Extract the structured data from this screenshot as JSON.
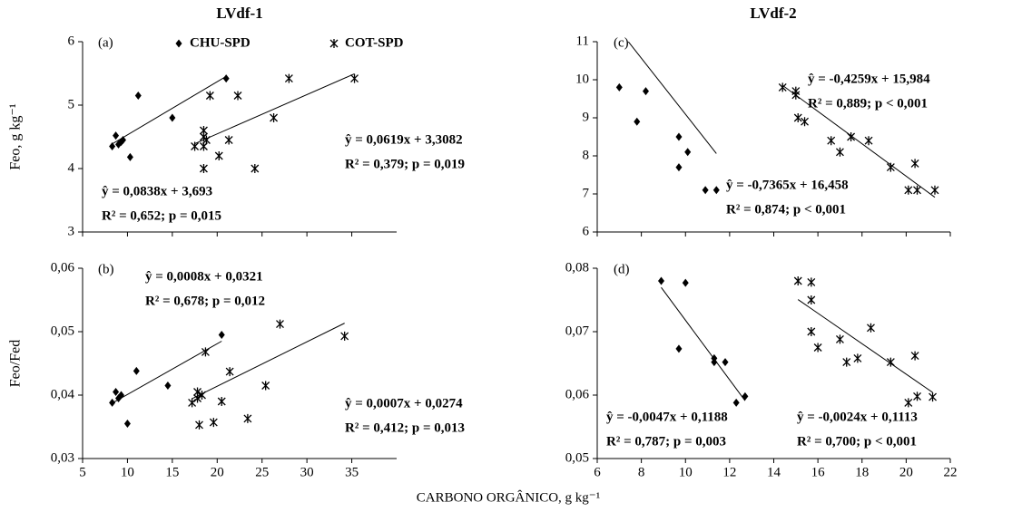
{
  "chart_data": [
    {
      "type": "scatter",
      "label": "(a)",
      "title": "LVdf-1",
      "ylabel": "Feo, g kg⁻¹",
      "xlim": [
        5,
        40
      ],
      "xticks": [
        5,
        10,
        15,
        20,
        25,
        30,
        35
      ],
      "xtick_labels": false,
      "ylim": [
        3,
        6
      ],
      "yticks": [
        3,
        4,
        5,
        6
      ],
      "legend": true,
      "series": [
        {
          "name": "CHU-SPD",
          "marker": "diamond",
          "color": "#000000",
          "x": [
            8.3,
            8.7,
            9.0,
            9.3,
            9.5,
            10.3,
            11.2,
            15.0,
            21.0
          ],
          "values": [
            4.35,
            4.52,
            4.38,
            4.42,
            4.45,
            4.18,
            5.15,
            4.8,
            5.42
          ],
          "fit": {
            "slope": 0.0838,
            "intercept": 3.693,
            "equation": "ŷ  = 0,0838x + 3,693",
            "stats": "R² = 0,652;   p = 0,015"
          }
        },
        {
          "name": "COT-SPD",
          "marker": "star",
          "color": "#000000",
          "x": [
            18.5,
            18.5,
            18.8,
            17.5,
            18.5,
            18.5,
            19.2,
            20.2,
            21.3,
            22.3,
            24.2,
            26.3,
            28.0,
            35.3
          ],
          "values": [
            4.6,
            4.5,
            4.45,
            4.35,
            4.35,
            4.0,
            5.15,
            4.2,
            4.45,
            5.15,
            4.0,
            4.8,
            5.42,
            5.42
          ],
          "fit": {
            "slope": 0.0619,
            "intercept": 3.3082,
            "equation": "ŷ  = 0,0619x + 3,3082",
            "stats": "R² = 0,379;   p = 0,019"
          }
        }
      ]
    },
    {
      "type": "scatter",
      "label": "(b)",
      "ylabel": "Feo/Fed",
      "xlim": [
        5,
        40
      ],
      "xticks": [
        5,
        10,
        15,
        20,
        25,
        30,
        35
      ],
      "xtick_labels": true,
      "ylim": [
        0.03,
        0.06
      ],
      "yticks": [
        {
          "value": 0.03,
          "label": "0,03"
        },
        {
          "value": 0.04,
          "label": "0,04"
        },
        {
          "value": 0.05,
          "label": "0,05"
        },
        {
          "value": 0.06,
          "label": "0,06"
        }
      ],
      "legend": false,
      "series": [
        {
          "marker": "diamond",
          "color": "#000000",
          "x": [
            8.3,
            8.7,
            9.0,
            9.3,
            10.0,
            11.0,
            14.5,
            20.5
          ],
          "values": [
            0.0388,
            0.0405,
            0.0395,
            0.04,
            0.0355,
            0.0438,
            0.0415,
            0.0495
          ],
          "fit": {
            "slope": 0.0008,
            "intercept": 0.0321,
            "equation": "ŷ  = 0,0008x + 0,0321",
            "stats": "R² = 0,678;   p = 0,012"
          }
        },
        {
          "marker": "star",
          "color": "#000000",
          "x": [
            17.2,
            17.8,
            17.8,
            18.0,
            18.3,
            18.7,
            19.6,
            20.5,
            21.4,
            23.4,
            25.4,
            27.0,
            34.2
          ],
          "values": [
            0.0388,
            0.0405,
            0.0395,
            0.0353,
            0.04,
            0.0468,
            0.0357,
            0.039,
            0.0437,
            0.0363,
            0.0415,
            0.0512,
            0.0493
          ],
          "fit": {
            "slope": 0.0007,
            "intercept": 0.0274,
            "equation": "ŷ  = 0,0007x + 0,0274",
            "stats": "R² = 0,412;   p = 0,013"
          }
        }
      ]
    },
    {
      "type": "scatter",
      "label": "(c)",
      "title": "LVdf-2",
      "xlim": [
        6,
        22
      ],
      "xticks": [
        6,
        8,
        10,
        12,
        14,
        16,
        18,
        20,
        22
      ],
      "xtick_labels": false,
      "ylim": [
        6,
        11
      ],
      "yticks": [
        6,
        7,
        8,
        9,
        10,
        11
      ],
      "legend": false,
      "series": [
        {
          "marker": "diamond",
          "color": "#000000",
          "x": [
            7.0,
            7.8,
            8.2,
            9.7,
            9.7,
            10.1,
            10.9,
            11.4
          ],
          "values": [
            9.8,
            8.9,
            9.7,
            8.5,
            7.7,
            8.1,
            7.1,
            7.1
          ],
          "fit": {
            "slope": -0.7365,
            "intercept": 16.458,
            "equation": "ŷ  = -0,7365x + 16,458",
            "stats": "R² = 0,874;   p < 0,001"
          }
        },
        {
          "marker": "star",
          "color": "#000000",
          "x": [
            14.4,
            15.0,
            15.0,
            15.1,
            15.4,
            16.6,
            17.0,
            17.5,
            18.3,
            19.3,
            20.1,
            20.4,
            20.5,
            21.3
          ],
          "values": [
            9.8,
            9.7,
            9.6,
            9.0,
            8.9,
            8.4,
            8.1,
            8.5,
            8.4,
            7.7,
            7.1,
            7.8,
            7.1,
            7.1
          ],
          "fit": {
            "slope": -0.4259,
            "intercept": 15.984,
            "equation": "ŷ  = -0,4259x + 15,984",
            "stats": "R² = 0,889;   p < 0,001"
          }
        }
      ]
    },
    {
      "type": "scatter",
      "label": "(d)",
      "xlim": [
        6,
        22
      ],
      "xticks": [
        6,
        8,
        10,
        12,
        14,
        16,
        18,
        20,
        22
      ],
      "xtick_labels": true,
      "ylim": [
        0.05,
        0.08
      ],
      "yticks": [
        {
          "value": 0.05,
          "label": "0,05"
        },
        {
          "value": 0.06,
          "label": "0,06"
        },
        {
          "value": 0.07,
          "label": "0,07"
        },
        {
          "value": 0.08,
          "label": "0,08"
        }
      ],
      "legend": false,
      "series": [
        {
          "marker": "diamond",
          "color": "#000000",
          "x": [
            8.9,
            9.7,
            10.0,
            11.3,
            11.3,
            11.8,
            12.3,
            12.7
          ],
          "values": [
            0.078,
            0.0673,
            0.0777,
            0.0658,
            0.0652,
            0.0652,
            0.0588,
            0.0598
          ],
          "fit": {
            "slope": -0.0047,
            "intercept": 0.1188,
            "equation": "ŷ  = -0,0047x + 0,1188",
            "stats": "R² = 0,787;   p = 0,003"
          }
        },
        {
          "marker": "star",
          "color": "#000000",
          "x": [
            15.1,
            15.7,
            15.7,
            15.7,
            16.0,
            17.0,
            17.3,
            17.8,
            18.4,
            19.3,
            20.1,
            20.4,
            20.5,
            21.2
          ],
          "values": [
            0.078,
            0.0778,
            0.075,
            0.07,
            0.0675,
            0.0688,
            0.0652,
            0.0658,
            0.0706,
            0.0652,
            0.0588,
            0.0662,
            0.0598,
            0.0597
          ],
          "fit": {
            "slope": -0.0024,
            "intercept": 0.1113,
            "equation": "ŷ  = -0,0024x + 0,1113",
            "stats": "R² = 0,700;   p < 0,001"
          }
        }
      ]
    }
  ],
  "xlabel": "CARBONO ORGÂNICO, g kg⁻¹"
}
